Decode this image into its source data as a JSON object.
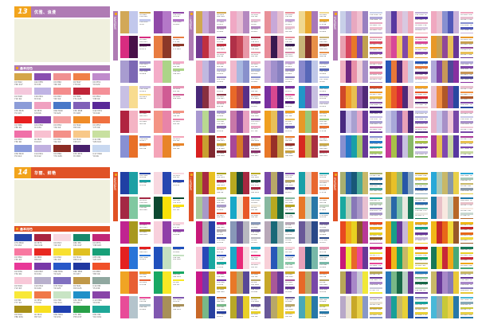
{
  "page": {
    "bg": "#FFFFFF"
  },
  "halves": [
    {
      "number": "13",
      "title": "优雅、浪漫",
      "swatch_label": "基本用色",
      "theme": {
        "accent": "#AF7BB4",
        "number_bg": "#F2A41C",
        "photo_bg": "#F0F0DE"
      },
      "swatches": [
        "#D4A649",
        "#8A4FB0",
        "#F09090",
        "#F08048",
        "#C08CCC",
        "#F4C8DC",
        "#C0B4E4",
        "#F48C8C",
        "#C02438",
        "#F49098",
        "#8C9CD8",
        "#F0A0C0",
        "#4878C8",
        "#8060B8",
        "#582898",
        "#E82020",
        "#8040A8",
        "#F4A0A0",
        "#F08C28",
        "#F07040",
        "#F070A8",
        "#F8C0D0",
        "#F49088",
        "#F8C888",
        "#C8E0A0",
        "#8C9CDC",
        "#C0B0E0",
        "#8C2C24",
        "#48206C",
        "#C8D8F0"
      ],
      "sections": [
        {
          "tab": "双色配色",
          "combos": [
            [
              "#D2A857",
              "#C2C8EC"
            ],
            [
              "#9048A8",
              "#B478C8"
            ],
            [
              "#D82C80",
              "#481048"
            ],
            [
              "#E87C40",
              "#8C3828"
            ],
            [
              "#A89CD0",
              "#7C68B4"
            ],
            [
              "#F4ACC8",
              "#ACD488"
            ],
            [
              "#C8C0E4",
              "#F8DC90"
            ],
            [
              "#E898B8",
              "#D05C94"
            ],
            [
              "#B02440",
              "#F4B4C4"
            ],
            [
              "#F49484",
              "#E884A8"
            ],
            [
              "#8890D4",
              "#E87028"
            ],
            [
              "#F4A4B8",
              "#E88428"
            ]
          ]
        },
        {
          "tab": "三色配色",
          "combos": [
            [
              "#D0A850",
              "#C8A8D8",
              "#B080B8"
            ],
            [
              "#F0A8C4",
              "#E8C0D4",
              "#B488C0"
            ],
            [
              "#E89098",
              "#C8A8D8",
              "#E8C0D0"
            ],
            [
              "#F0D890",
              "#E8A830",
              "#A878B8"
            ],
            [
              "#703890",
              "#C03040",
              "#E890A8"
            ],
            [
              "#B03048",
              "#C84858",
              "#E898A8"
            ],
            [
              "#E88C98",
              "#381850",
              "#D88CA8"
            ],
            [
              "#C8B478",
              "#803028",
              "#E89048"
            ],
            [
              "#F0A8C0",
              "#C0B8E0",
              "#9888C8"
            ],
            [
              "#F0B8CC",
              "#A8B8E0",
              "#8890CC"
            ],
            [
              "#C8A8D8",
              "#A090CC",
              "#8880C0"
            ],
            [
              "#8888CC",
              "#5868B8",
              "#C0C8E8"
            ],
            [
              "#482878",
              "#883040",
              "#E898B0"
            ],
            [
              "#E86828",
              "#C04838",
              "#583088"
            ],
            [
              "#7830A0",
              "#D84890",
              "#501878"
            ],
            [
              "#2098C8",
              "#7850A8",
              "#C8C0E0"
            ],
            [
              "#A898D0",
              "#B8D890",
              "#8868B0"
            ],
            [
              "#C878A8",
              "#8848A0",
              "#E8A0C0"
            ],
            [
              "#F0A020",
              "#E8C058",
              "#6858B0"
            ],
            [
              "#E89828",
              "#98C878",
              "#E87030"
            ],
            [
              "#D82020",
              "#C8A030",
              "#802830"
            ],
            [
              "#A84898",
              "#D87828",
              "#883068"
            ],
            [
              "#E87828",
              "#983028",
              "#C8A040"
            ],
            [
              "#D82820",
              "#C8A848",
              "#A83040"
            ]
          ]
        },
        {
          "tab": "四色配色",
          "combos": [
            [
              "#C8D0E8",
              "#B0A8D8",
              "#E8A8C0",
              "#F0C0D0",
              "#9880C0"
            ],
            [
              "#C0B0D8",
              "#5838A0",
              "#E8B0C8",
              "#D8C8E0",
              "#F0A8B8"
            ],
            [
              "#F0A8C0",
              "#E8C0D0",
              "#8890D0",
              "#5058B8",
              "#C8B0D8"
            ],
            [
              "#E8A0B0",
              "#D84860",
              "#E87828",
              "#8048A8",
              "#C0A050"
            ],
            [
              "#E88098",
              "#D84898",
              "#F0C860",
              "#8048A8",
              "#F0B040"
            ],
            [
              "#E89828",
              "#C8A050",
              "#904898",
              "#E8C058",
              "#683898"
            ],
            [
              "#F0B0C0",
              "#702880",
              "#E890A8",
              "#F0D0D8",
              "#A890C8"
            ],
            [
              "#2858B8",
              "#E87838",
              "#502878",
              "#F0A8B8",
              "#C8D0E8"
            ],
            [
              "#B0A8D8",
              "#8048A8",
              "#C89858",
              "#504898",
              "#8830A0"
            ],
            [
              "#D04828",
              "#F09828",
              "#E8C050",
              "#8858A8",
              "#502878"
            ],
            [
              "#F0A028",
              "#E85828",
              "#D82838",
              "#502878",
              "#E8C0D0"
            ],
            [
              "#E8C0D0",
              "#F09040",
              "#B05828",
              "#8048A8",
              "#2848A0"
            ],
            [
              "#482880",
              "#C8C0E8",
              "#A8A0D0",
              "#E8A8C8",
              "#683898"
            ],
            [
              "#C8C8E8",
              "#A8A8D8",
              "#7858B0",
              "#E8A0B8",
              "#482878"
            ],
            [
              "#E8B0C8",
              "#C8C8E8",
              "#A890C8",
              "#F0C8D8",
              "#7848A8"
            ],
            [
              "#8890D0",
              "#2878C8",
              "#18A0A8",
              "#A8C868",
              "#683898"
            ],
            [
              "#C83898",
              "#A8C048",
              "#683898",
              "#C8C0E0",
              "#88B868"
            ],
            [
              "#A83898",
              "#E8C050",
              "#8048B0",
              "#C8D8A0",
              "#5838A0"
            ]
          ]
        }
      ]
    },
    {
      "number": "14",
      "title": "华丽、鲜艳",
      "swatch_label": "基本用色",
      "theme": {
        "accent": "#E05226",
        "number_bg": "#F2A41C",
        "photo_bg": "#F0F0DE"
      },
      "swatches": [
        "#2444A8",
        "#A82440",
        "#F8D8E0",
        "#18886C",
        "#C02878",
        "#F878A0",
        "#E82820",
        "#F8E030",
        "#E0C020",
        "#18A078",
        "#E83898",
        "#7838A8",
        "#2858C8",
        "#2038A0",
        "#F05028",
        "#F8C8D8",
        "#B8B0CC",
        "#8070C0",
        "#C09848",
        "#90A8A0",
        "#F8E838",
        "#F07848",
        "#C8E4C4",
        "#2090C8",
        "#8844A8",
        "#A89018",
        "#F8E020",
        "#2040B0",
        "#28A048",
        "#20A898"
      ],
      "sections": [
        {
          "tab": "双色配色",
          "combos": [
            [
              "#2040A4",
              "#1CA0A4"
            ],
            [
              "#F8D8E0",
              "#2846B0"
            ],
            [
              "#A42844",
              "#80C8A0"
            ],
            [
              "#0C4830",
              "#F8E008"
            ],
            [
              "#C02490",
              "#A89820"
            ],
            [
              "#F8D0DC",
              "#9040A8"
            ],
            [
              "#E42020",
              "#2874D8"
            ],
            [
              "#2050BC",
              "#C4E0C0"
            ],
            [
              "#F0A424",
              "#E86034"
            ],
            [
              "#18A864",
              "#F8E824"
            ],
            [
              "#E84C98",
              "#B4C4CC"
            ],
            [
              "#8058B0",
              "#A89058"
            ]
          ]
        },
        {
          "tab": "三色配色",
          "combos": [
            [
              "#A8A020",
              "#A82844",
              "#E8C020"
            ],
            [
              "#B8A820",
              "#184838",
              "#A82840"
            ],
            [
              "#7848A8",
              "#B8A868",
              "#483888"
            ],
            [
              "#18A0A8",
              "#E8D0C8",
              "#E86830"
            ],
            [
              "#A8C898",
              "#A898C8",
              "#D84828"
            ],
            [
              "#18A8C8",
              "#F0E8D8",
              "#E85828"
            ],
            [
              "#88B8A0",
              "#B8A820",
              "#186848"
            ],
            [
              "#E87828",
              "#C8D8C8",
              "#2878A8"
            ],
            [
              "#C81878",
              "#B0A8B0",
              "#2840A8"
            ],
            [
              "#8898B8",
              "#685898",
              "#B8B8C0"
            ],
            [
              "#B8A8B8",
              "#186878",
              "#A8B8B8"
            ],
            [
              "#685898",
              "#A8A8B8",
              "#284888"
            ],
            [
              "#F8C8D8",
              "#2848B8",
              "#18A8A0"
            ],
            [
              "#18A8C8",
              "#E82878",
              "#F8D8E0"
            ],
            [
              "#F8D0D8",
              "#2858B8",
              "#88C8A8"
            ],
            [
              "#E8A0B8",
              "#185878",
              "#78B8A8"
            ],
            [
              "#C81888",
              "#7838A8",
              "#C8A828"
            ],
            [
              "#E87828",
              "#B8A868",
              "#584898"
            ],
            [
              "#C8A828",
              "#A85898",
              "#683898"
            ],
            [
              "#E86828",
              "#B8A868",
              "#7848A8"
            ],
            [
              "#C86828",
              "#78B888",
              "#2840A0"
            ],
            [
              "#B8A828",
              "#685898",
              "#E8D028"
            ],
            [
              "#685898",
              "#B8A868",
              "#E8C828"
            ],
            [
              "#48A8B8",
              "#C8C838",
              "#2878A8"
            ]
          ]
        },
        {
          "tab": "四色配色",
          "combos": [
            [
              "#A8B070",
              "#2868A8",
              "#185878",
              "#48A898",
              "#C8B868"
            ],
            [
              "#C8A020",
              "#E8C028",
              "#98B868",
              "#2858A8",
              "#88A8C0"
            ],
            [
              "#28A8D8",
              "#A8C8B8",
              "#C8B868",
              "#8898A8",
              "#E8D048"
            ],
            [
              "#18A8A0",
              "#B8D0B8",
              "#8878B8",
              "#A898C8",
              "#E8C0D0"
            ],
            [
              "#B8C8B0",
              "#2868A8",
              "#78C0A8",
              "#E8E8E0",
              "#187858"
            ],
            [
              "#1878A8",
              "#E8C0C8",
              "#F8E8E0",
              "#C8D8D0",
              "#B86828"
            ],
            [
              "#E84820",
              "#F0A818",
              "#E8D020",
              "#885828",
              "#B83898"
            ],
            [
              "#E8A818",
              "#18A088",
              "#683898",
              "#C8B8D8",
              "#F0D028"
            ],
            [
              "#F0B818",
              "#C82828",
              "#E86818",
              "#F0D838",
              "#985828"
            ],
            [
              "#C81878",
              "#F0E838",
              "#E86828",
              "#E84898",
              "#683898"
            ],
            [
              "#D81818",
              "#F0B818",
              "#18A068",
              "#C8B868",
              "#F0E838"
            ],
            [
              "#187858",
              "#E8D028",
              "#C82838",
              "#F0A818",
              "#48A878"
            ],
            [
              "#B8A858",
              "#683898",
              "#A888C8",
              "#C8C8D8",
              "#F0E838"
            ],
            [
              "#2878B8",
              "#78B888",
              "#186848",
              "#B8D0C0",
              "#683898"
            ],
            [
              "#C8B868",
              "#683898",
              "#A888C8",
              "#8878B8",
              "#E8C838"
            ],
            [
              "#B8A8C8",
              "#E8E0D0",
              "#C8A828",
              "#E8D048",
              "#8898C8"
            ],
            [
              "#8878B8",
              "#18A098",
              "#C8B868",
              "#E8D038",
              "#2858A8"
            ],
            [
              "#48B8D8",
              "#88A8B8",
              "#C8C838",
              "#E8D048",
              "#2878A8"
            ]
          ]
        }
      ]
    }
  ]
}
